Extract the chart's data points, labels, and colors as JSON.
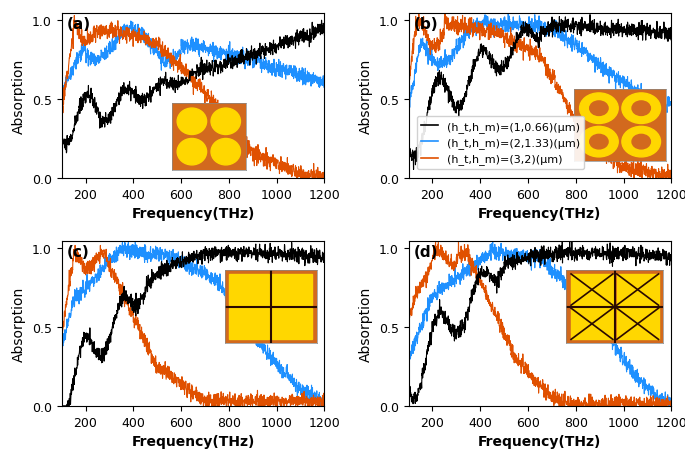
{
  "title_fontsize": 11,
  "label_fontsize": 10,
  "tick_fontsize": 9,
  "legend_fontsize": 8.0,
  "colors": {
    "black": "#000000",
    "blue": "#1E90FF",
    "orange": "#E05000"
  },
  "xlim": [
    100,
    1200
  ],
  "ylim": [
    0,
    1.05
  ],
  "yticks": [
    0,
    0.5,
    1
  ],
  "xticks": [
    200,
    400,
    600,
    800,
    1000,
    1200
  ],
  "xlabel": "Frequency(THz)",
  "ylabel": "Absorption",
  "subplot_labels": [
    "(a)",
    "(b)",
    "(c)",
    "(d)"
  ],
  "legend_labels": [
    "(h_t,h_m)=(1,0.66)(μm)",
    "(h_t,h_m)=(2,1.33)(μm)",
    "(h_t,h_m)=(3,2)(μm)"
  ],
  "inset_bg_color": "#D2691E",
  "inset_shape_color": "#FFD700"
}
